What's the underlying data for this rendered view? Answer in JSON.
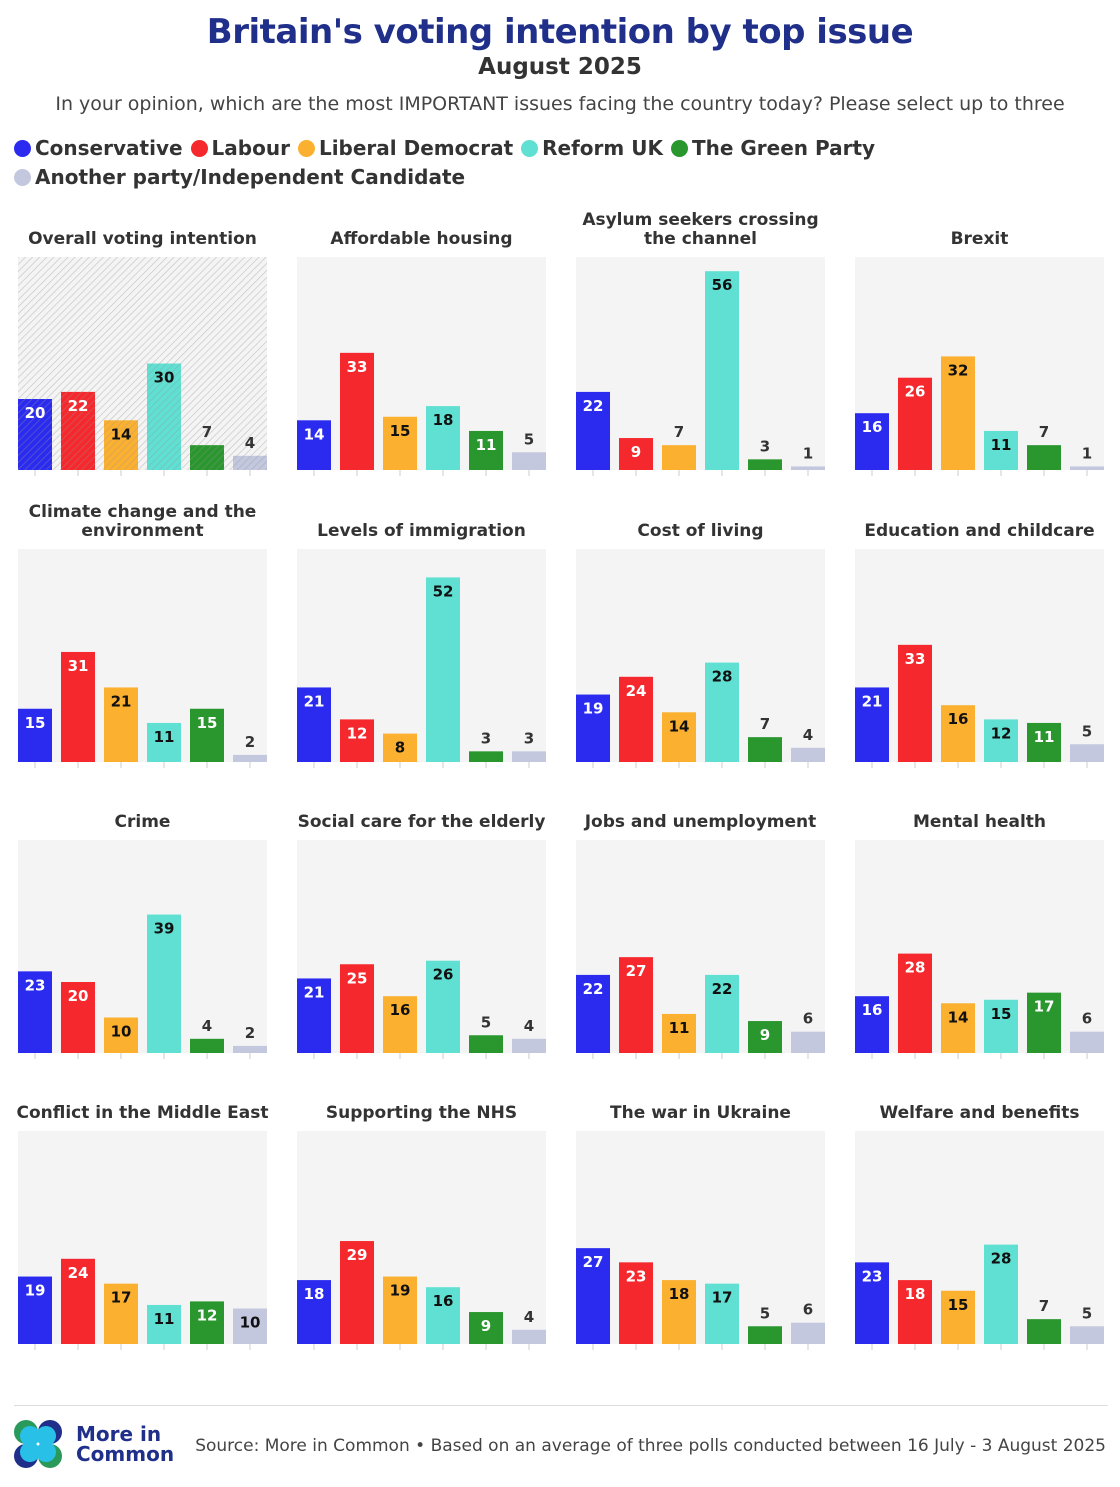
{
  "title": "Britain's voting intention by top issue",
  "subtitle": "August 2025",
  "question": "In your opinion, which are the most IMPORTANT issues facing the country today? Please select up to three",
  "source": "Source: More in Common • Based on an average of three polls conducted between 16 July - 3 August 2025",
  "logo": {
    "line1": "More in",
    "line2": "Common"
  },
  "colors": {
    "Conservative": "#2b2bf0",
    "Labour": "#f5282d",
    "Liberal Democrat": "#fbb030",
    "Reform UK": "#5fe0d2",
    "The Green Party": "#2a962e",
    "Another party/Independent Candidate": "#c3c8df"
  },
  "chart_data": {
    "type": "bar",
    "categories": [
      "Conservative",
      "Labour",
      "Liberal Democrat",
      "Reform UK",
      "The Green Party",
      "Another party/Independent Candidate"
    ],
    "legend": "top-left",
    "ylim": [
      0,
      60
    ],
    "panels": [
      {
        "title": "Overall voting intention",
        "values": [
          20,
          22,
          14,
          30,
          7,
          4
        ],
        "hatched": true
      },
      {
        "title": "Affordable housing",
        "values": [
          14,
          33,
          15,
          18,
          11,
          5
        ]
      },
      {
        "title": "Asylum seekers crossing the channel",
        "values": [
          22,
          9,
          7,
          56,
          3,
          1
        ]
      },
      {
        "title": "Brexit",
        "values": [
          16,
          26,
          32,
          11,
          7,
          1
        ]
      },
      {
        "title": "Climate change and the environment",
        "values": [
          15,
          31,
          21,
          11,
          15,
          2
        ]
      },
      {
        "title": "Levels of immigration",
        "values": [
          21,
          12,
          8,
          52,
          3,
          3
        ]
      },
      {
        "title": "Cost of living",
        "values": [
          19,
          24,
          14,
          28,
          7,
          4
        ]
      },
      {
        "title": "Education and childcare",
        "values": [
          21,
          33,
          16,
          12,
          11,
          5
        ]
      },
      {
        "title": "Crime",
        "values": [
          23,
          20,
          10,
          39,
          4,
          2
        ]
      },
      {
        "title": "Social care for the elderly",
        "values": [
          21,
          25,
          16,
          26,
          5,
          4
        ]
      },
      {
        "title": "Jobs and unemployment",
        "values": [
          22,
          27,
          11,
          22,
          9,
          6
        ]
      },
      {
        "title": "Mental health",
        "values": [
          16,
          28,
          14,
          15,
          17,
          6
        ]
      },
      {
        "title": "Conflict in the Middle East",
        "values": [
          19,
          24,
          17,
          11,
          12,
          10
        ]
      },
      {
        "title": "Supporting the NHS",
        "values": [
          18,
          29,
          19,
          16,
          9,
          4
        ]
      },
      {
        "title": "The war in Ukraine",
        "values": [
          27,
          23,
          18,
          17,
          5,
          6
        ]
      },
      {
        "title": "Welfare and benefits",
        "values": [
          23,
          18,
          15,
          28,
          7,
          5
        ]
      }
    ]
  }
}
